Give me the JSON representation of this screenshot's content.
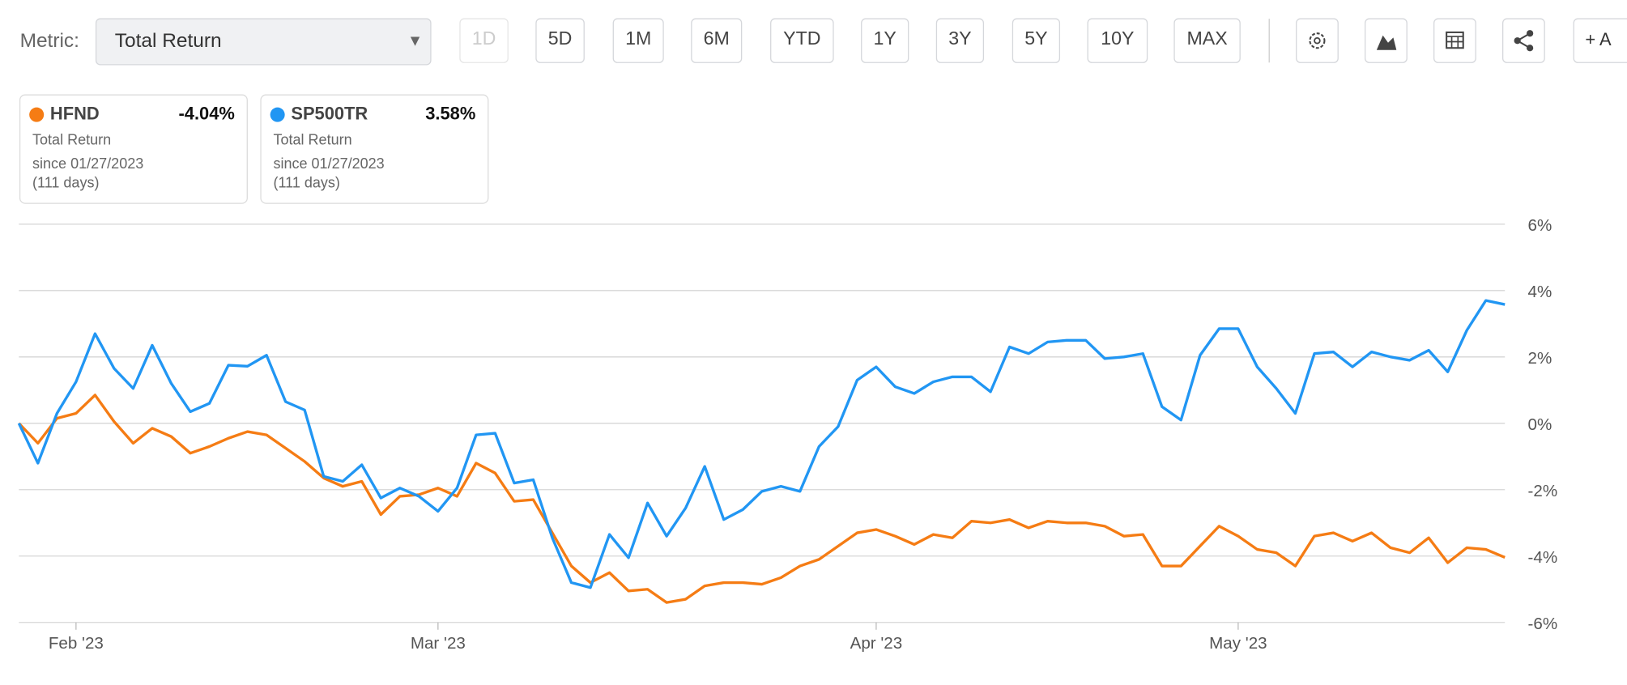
{
  "toolbar": {
    "metric_label": "Metric:",
    "metric_value": "Total Return",
    "dropdown_arrow": "▼",
    "ranges": [
      "1D",
      "5D",
      "1M",
      "6M",
      "YTD",
      "1Y",
      "3Y",
      "5Y",
      "10Y",
      "MAX"
    ],
    "add_button": "+ A"
  },
  "legend_cards": [
    {
      "change": "-4.04%",
      "metric": "Total Return",
      "since": "since 01/27/2023",
      "days": "(111 days)"
    },
    {
      "change": "3.58%",
      "metric": "Total Return",
      "since": "since 01/27/2023",
      "days": "(111 days)"
    }
  ],
  "chart_data": {
    "type": "line",
    "categories": [
      null,
      null,
      null,
      "Feb '23",
      null,
      null,
      null,
      null,
      null,
      null,
      null,
      null,
      null,
      null,
      null,
      null,
      null,
      null,
      null,
      null,
      null,
      null,
      "Mar '23",
      null,
      null,
      null,
      null,
      null,
      null,
      null,
      null,
      null,
      null,
      null,
      null,
      null,
      null,
      null,
      null,
      null,
      null,
      null,
      null,
      null,
      null,
      "Apr '23",
      null,
      null,
      null,
      null,
      null,
      null,
      null,
      null,
      null,
      null,
      null,
      null,
      null,
      null,
      null,
      null,
      null,
      null,
      "May '23",
      null,
      null,
      null,
      null,
      null,
      null,
      null,
      null,
      null,
      null,
      null,
      null,
      null,
      null
    ],
    "series": [
      {
        "name": "HFND",
        "color": "#f57c14",
        "values": [
          0,
          -0.6,
          0.15,
          0.3,
          0.85,
          0.05,
          -0.6,
          -0.15,
          -0.4,
          -0.9,
          -0.7,
          -0.45,
          -0.25,
          -0.35,
          -0.75,
          -1.15,
          -1.65,
          -1.9,
          -1.75,
          -2.75,
          -2.2,
          -2.15,
          -1.95,
          -2.2,
          -1.2,
          -1.5,
          -2.35,
          -2.3,
          -3.3,
          -4.3,
          -4.8,
          -4.5,
          -5.05,
          -5.0,
          -5.4,
          -5.3,
          -4.9,
          -4.8,
          -4.8,
          -4.85,
          -4.65,
          -4.3,
          -4.1,
          -3.7,
          -3.3,
          -3.2,
          -3.4,
          -3.65,
          -3.35,
          -3.45,
          -2.95,
          -3.0,
          -2.9,
          -3.15,
          -2.95,
          -3.0,
          -3.0,
          -3.1,
          -3.4,
          -3.35,
          -4.3,
          -4.3,
          -3.7,
          -3.1,
          -3.4,
          -3.8,
          -3.9,
          -4.3,
          -3.4,
          -3.3,
          -3.55,
          -3.3,
          -3.75,
          -3.9,
          -3.45,
          -4.2,
          -3.75,
          -3.8,
          -4.04
        ]
      },
      {
        "name": "SP500TR",
        "color": "#2196f3",
        "values": [
          0,
          -1.2,
          0.3,
          1.25,
          2.7,
          1.65,
          1.05,
          2.35,
          1.2,
          0.35,
          0.6,
          1.75,
          1.72,
          2.05,
          0.65,
          0.4,
          -1.6,
          -1.75,
          -1.25,
          -2.25,
          -1.95,
          -2.2,
          -2.65,
          -1.95,
          -0.35,
          -0.3,
          -1.8,
          -1.7,
          -3.45,
          -4.8,
          -4.95,
          -3.35,
          -4.05,
          -2.4,
          -3.4,
          -2.55,
          -1.3,
          -2.9,
          -2.6,
          -2.05,
          -1.9,
          -2.05,
          -0.7,
          -0.1,
          1.3,
          1.7,
          1.1,
          0.9,
          1.25,
          1.4,
          1.4,
          0.95,
          2.3,
          2.1,
          2.45,
          2.5,
          2.5,
          1.95,
          2.0,
          2.1,
          0.5,
          0.1,
          2.05,
          2.85,
          2.85,
          1.7,
          1.05,
          0.3,
          2.1,
          2.15,
          1.7,
          2.15,
          2.0,
          1.9,
          2.2,
          1.55,
          2.8,
          3.7,
          3.58
        ]
      }
    ],
    "ylim": [
      -6,
      6
    ],
    "yticks": [
      {
        "value": -6,
        "label": "-6%"
      },
      {
        "value": -4,
        "label": "-4%"
      },
      {
        "value": -2,
        "label": "-2%"
      },
      {
        "value": 0,
        "label": "0%"
      },
      {
        "value": 2,
        "label": "2%"
      },
      {
        "value": 4,
        "label": "4%"
      },
      {
        "value": 6,
        "label": "6%"
      }
    ],
    "grid": true
  }
}
